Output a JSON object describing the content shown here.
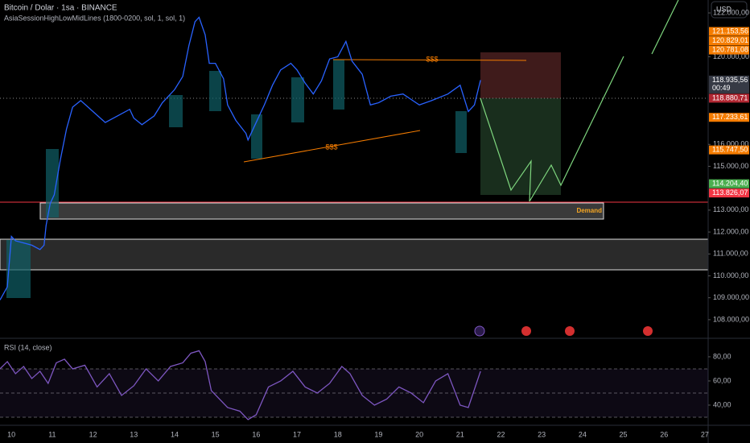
{
  "chart_data": {
    "type": "line",
    "title": "Bitcoin / Dolar · 1sa · BINANCE",
    "subtitle": "AsiaSessionHighLowMidLines (1800-0200, sol, 1, sol, 1)",
    "currency": "USD",
    "demand_label": "Demand",
    "annotations": [
      "$$$",
      "$$$"
    ],
    "xlim": [
      9.72,
      27.08
    ],
    "xticks": [
      10,
      11,
      12,
      13,
      14,
      15,
      16,
      17,
      18,
      19,
      20,
      21,
      22,
      23,
      24,
      25,
      26,
      27
    ],
    "ylim": [
      107150,
      122590
    ],
    "yticks": [
      {
        "value": 122000,
        "label": "122.000,00"
      },
      {
        "value": 120000,
        "label": "120.000,00"
      },
      {
        "value": 116000,
        "label": "116.000,00"
      },
      {
        "value": 115000,
        "label": "115.000,00"
      },
      {
        "value": 113000,
        "label": "113.000,00"
      },
      {
        "value": 112000,
        "label": "112.000,00"
      },
      {
        "value": 111000,
        "label": "111.000,00"
      },
      {
        "value": 110000,
        "label": "110.000,00"
      },
      {
        "value": 109000,
        "label": "109.000,00"
      },
      {
        "value": 108000,
        "label": "108.000,00"
      }
    ],
    "price_labels": [
      {
        "value": 121153.56,
        "label": "121.153,56",
        "color": "#f57c00"
      },
      {
        "value": 120829.01,
        "label": "120.829,01",
        "color": "#f57c00"
      },
      {
        "value": 120781.08,
        "label": "120.781,08",
        "color": "#f57c00"
      },
      {
        "value": 118935.56,
        "label": "118.935,56",
        "color": "#363a45"
      },
      {
        "value": 118880.71,
        "label": "118.880,71",
        "color": "#b22833"
      },
      {
        "value": 117233.61,
        "label": "117.233,61",
        "color": "#f57c00"
      },
      {
        "value": 115747.5,
        "label": "115.747,50",
        "color": "#f57c00"
      },
      {
        "value": 114204.4,
        "label": "114.204,40",
        "color": "#4caf50"
      },
      {
        "value": 113826.07,
        "label": "113.826,07",
        "color": "#f23645"
      }
    ],
    "countdown": "00:49",
    "series": [
      {
        "name": "Bitcoin / Dolar",
        "color": "#2962ff",
        "x": [
          9.72,
          9.9,
          10.0,
          10.1,
          10.3,
          10.5,
          10.7,
          10.8,
          10.85,
          10.95,
          11.05,
          11.2,
          11.35,
          11.5,
          11.7,
          12.0,
          12.3,
          12.6,
          12.9,
          13.0,
          13.2,
          13.5,
          13.7,
          14.0,
          14.2,
          14.35,
          14.5,
          14.6,
          14.75,
          14.85,
          15.0,
          15.2,
          15.3,
          15.5,
          15.75,
          15.8,
          16.0,
          16.2,
          16.4,
          16.6,
          16.85,
          17.0,
          17.2,
          17.4,
          17.6,
          17.8,
          18.0,
          18.2,
          18.35,
          18.6,
          18.8,
          19.0,
          19.3,
          19.6,
          20.0,
          20.3,
          20.7,
          21.0,
          21.2,
          21.35,
          21.5
        ],
        "values": [
          108900,
          109500,
          111800,
          111600,
          111500,
          111400,
          111200,
          111400,
          112300,
          113300,
          113700,
          115300,
          116700,
          117700,
          118000,
          117500,
          117000,
          117300,
          117600,
          117200,
          116900,
          117300,
          117900,
          118500,
          119100,
          120500,
          121600,
          121800,
          121000,
          119700,
          119700,
          119000,
          117800,
          117100,
          116500,
          116200,
          117000,
          117800,
          118700,
          119400,
          119700,
          119400,
          118800,
          118300,
          118900,
          119900,
          120000,
          120700,
          119800,
          119200,
          117800,
          117900,
          118200,
          118300,
          117800,
          118000,
          118300,
          118700,
          117500,
          117800,
          118935.56
        ]
      }
    ],
    "rsi": {
      "type": "line",
      "title": "RSI (14, close)",
      "color": "#7e57c2",
      "ylim": [
        23.3,
        95.3
      ],
      "yticks": [
        {
          "value": 80,
          "label": "80,00"
        },
        {
          "value": 60,
          "label": "60,00"
        },
        {
          "value": 40,
          "label": "40,00"
        }
      ],
      "levels": [
        70,
        50,
        30
      ],
      "x": [
        9.72,
        9.9,
        10.1,
        10.3,
        10.5,
        10.7,
        10.9,
        11.1,
        11.3,
        11.5,
        11.8,
        12.1,
        12.4,
        12.7,
        13.0,
        13.3,
        13.6,
        13.9,
        14.2,
        14.4,
        14.6,
        14.75,
        14.9,
        15.1,
        15.3,
        15.6,
        15.8,
        16.0,
        16.3,
        16.6,
        16.9,
        17.2,
        17.5,
        17.8,
        18.1,
        18.3,
        18.6,
        18.9,
        19.2,
        19.5,
        19.8,
        20.1,
        20.4,
        20.7,
        21.0,
        21.2,
        21.4,
        21.5
      ],
      "values": [
        70,
        76,
        66,
        72,
        62,
        68,
        58,
        75,
        78,
        70,
        73,
        55,
        66,
        48,
        56,
        70,
        60,
        72,
        75,
        83,
        85,
        76,
        52,
        45,
        38,
        35,
        28,
        32,
        55,
        60,
        68,
        55,
        50,
        58,
        72,
        66,
        48,
        40,
        45,
        55,
        50,
        42,
        60,
        66,
        40,
        38,
        58,
        68
      ]
    }
  }
}
